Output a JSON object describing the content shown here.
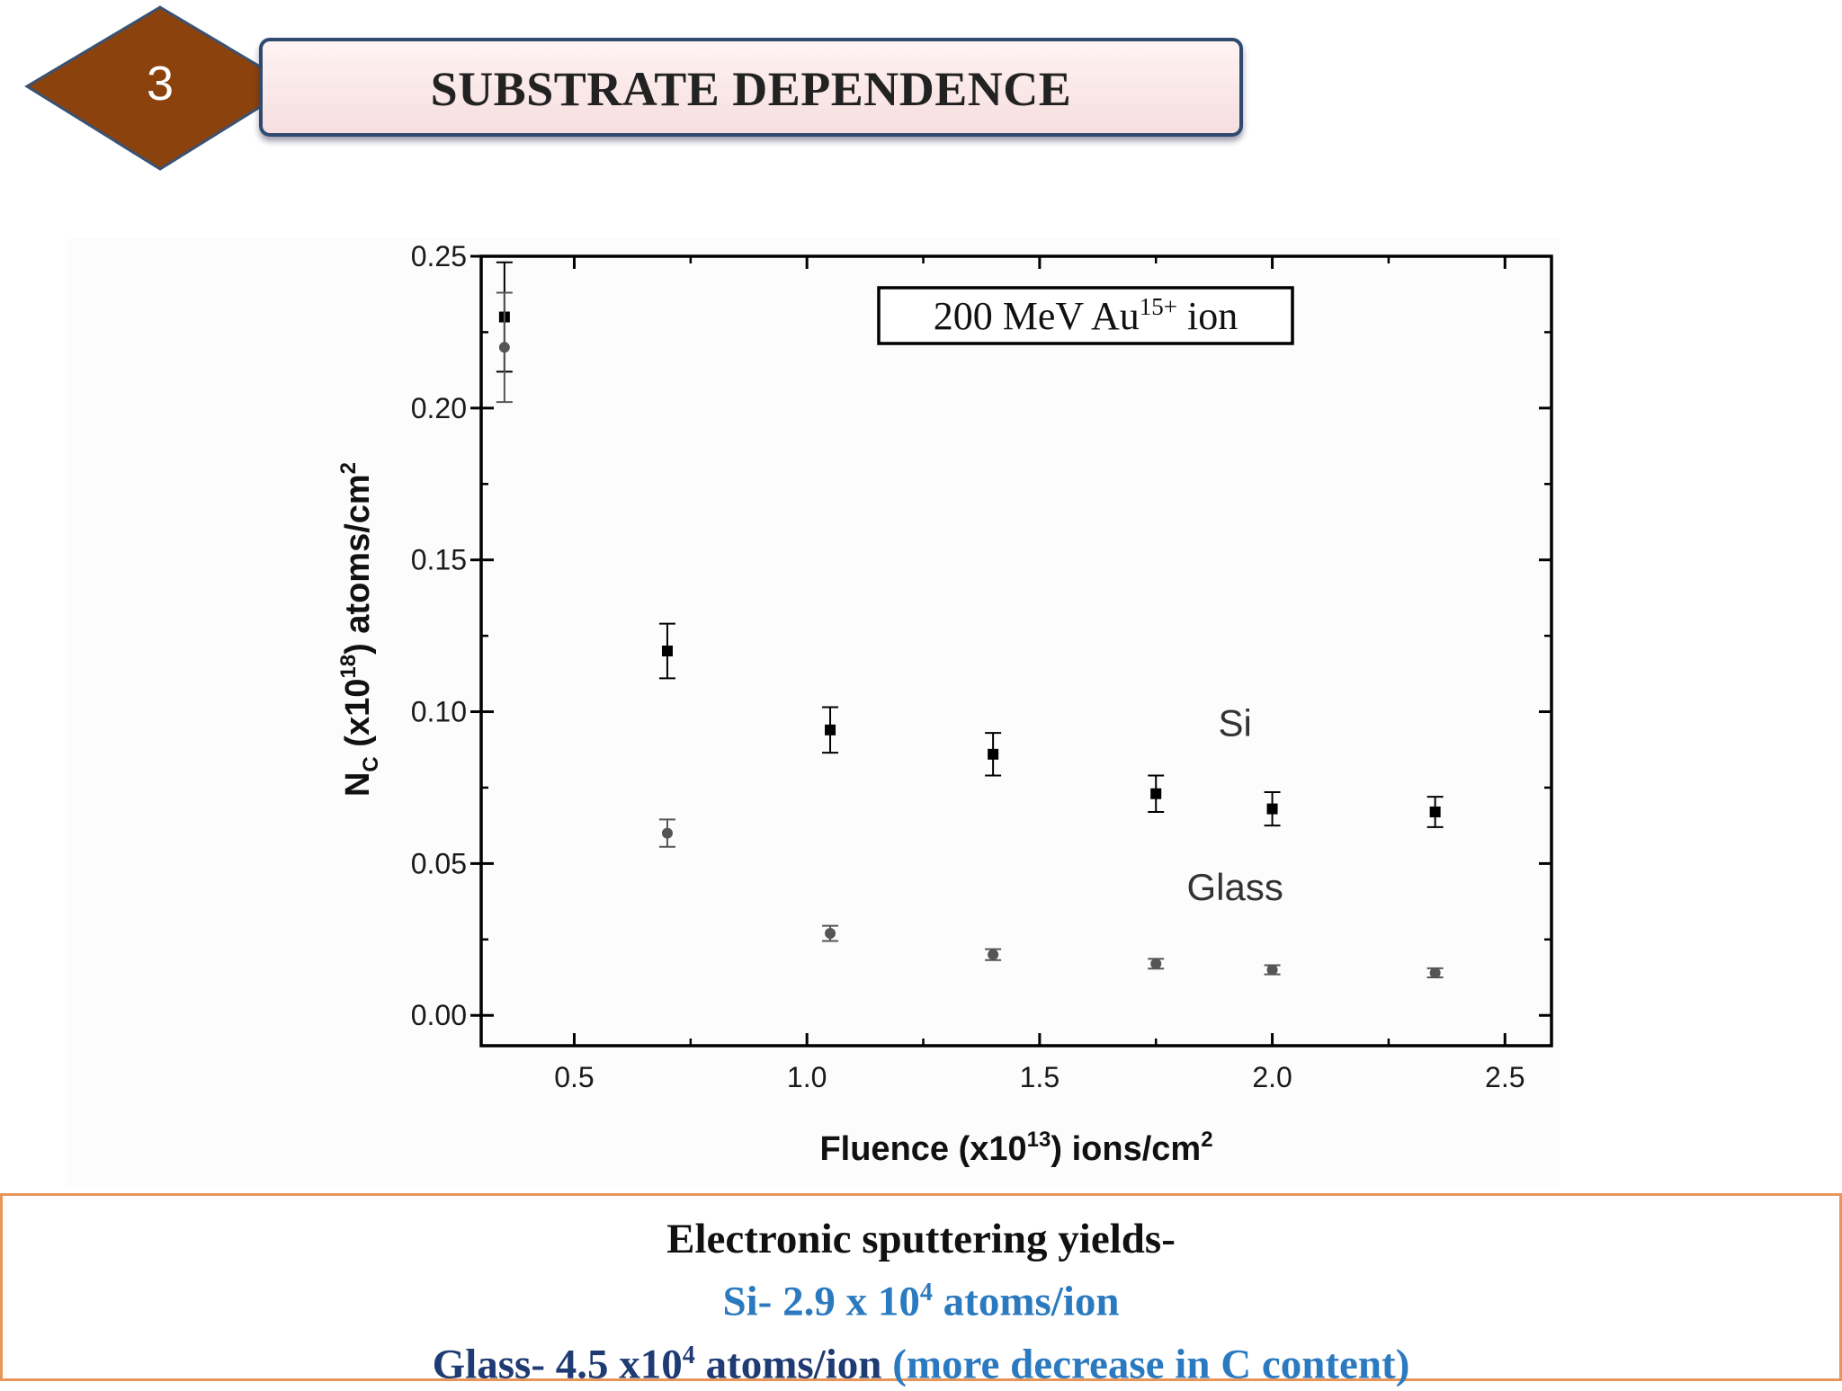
{
  "slide": {
    "number": "3",
    "title": "SUBSTRATE DEPENDENCE",
    "colors": {
      "diamond_fill": "#8b420d",
      "diamond_stroke": "#3a5272",
      "title_border": "#2f4a6e",
      "bottom_border": "#e8955a"
    }
  },
  "chart_data": {
    "type": "scatter",
    "xlabel": {
      "pre": "Fluence (x10",
      "sup": "13",
      "post": ") ions/cm",
      "sup2": "2"
    },
    "ylabel": {
      "pre": "N",
      "sub": "C",
      "mid": " (x10",
      "sup": "18",
      "post": ") atoms/cm",
      "sup2": "2"
    },
    "xlim": [
      0.3,
      2.6
    ],
    "ylim": [
      -0.01,
      0.25
    ],
    "xticks": [
      "0.5",
      "1.0",
      "1.5",
      "2.0",
      "2.5"
    ],
    "xtick_values": [
      0.5,
      1.0,
      1.5,
      2.0,
      2.5
    ],
    "yticks": [
      "0.00",
      "0.05",
      "0.10",
      "0.15",
      "0.20",
      "0.25"
    ],
    "ytick_values": [
      0.0,
      0.05,
      0.1,
      0.15,
      0.2,
      0.25
    ],
    "annotation": {
      "pre": "200 MeV Au",
      "sup": "15+",
      "post": " ion"
    },
    "series": [
      {
        "name": "Si",
        "marker": "square",
        "color": "#000000",
        "x": [
          0.35,
          0.7,
          1.05,
          1.4,
          1.75,
          2.0,
          2.35
        ],
        "y": [
          0.23,
          0.12,
          0.094,
          0.086,
          0.073,
          0.068,
          0.067
        ],
        "err": [
          0.018,
          0.009,
          0.0075,
          0.007,
          0.006,
          0.0055,
          0.005
        ]
      },
      {
        "name": "Glass",
        "marker": "circle",
        "color": "#555555",
        "x": [
          0.35,
          0.7,
          1.05,
          1.4,
          1.75,
          2.0,
          2.35
        ],
        "y": [
          0.22,
          0.06,
          0.027,
          0.02,
          0.017,
          0.015,
          0.014
        ],
        "err": [
          0.018,
          0.0045,
          0.0025,
          0.0018,
          0.0016,
          0.0015,
          0.0015
        ]
      }
    ]
  },
  "summary": {
    "heading": "Electronic sputtering yields-",
    "si": {
      "pre": "Si- 2.9 x 10",
      "sup": "4",
      "post": " atoms/ion"
    },
    "glass": {
      "pre": "Glass- 4.5 x10",
      "sup": "4",
      "post": " atoms/ion",
      "note": " (more decrease in C content)"
    }
  }
}
